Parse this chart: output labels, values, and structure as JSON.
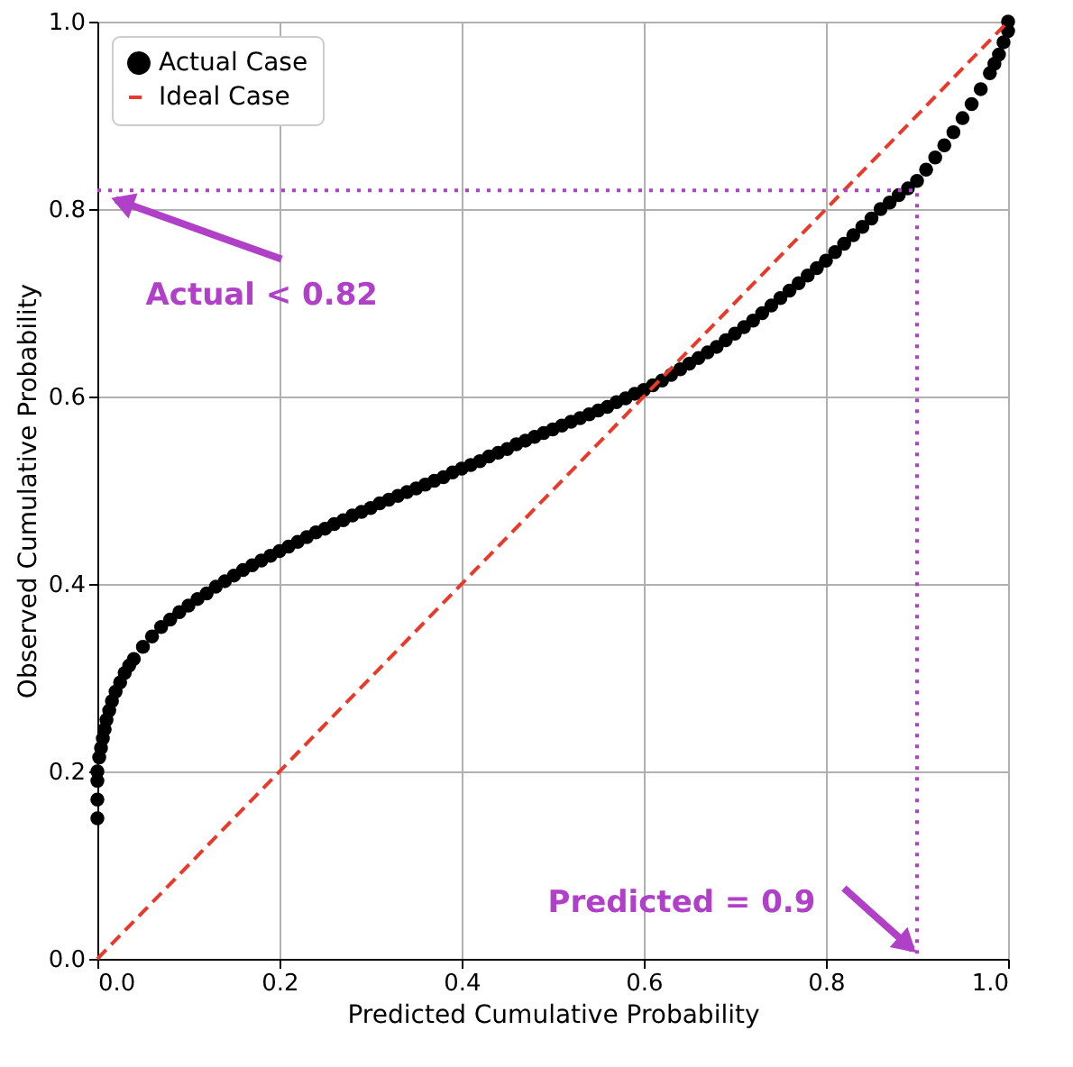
{
  "chart_data": {
    "type": "scatter",
    "xlabel": "Predicted Cumulative Probability",
    "ylabel": "Observed Cumulative Probability",
    "xlim": [
      0,
      1
    ],
    "ylim": [
      0,
      1
    ],
    "xticks": [
      {
        "value": 0,
        "label": "0.0"
      },
      {
        "value": 0.2,
        "label": "0.2"
      },
      {
        "value": 0.4,
        "label": "0.4"
      },
      {
        "value": 0.6,
        "label": "0.6"
      },
      {
        "value": 0.8,
        "label": "0.8"
      },
      {
        "value": 1,
        "label": "1.0"
      }
    ],
    "yticks": [
      {
        "value": 0,
        "label": "0.0"
      },
      {
        "value": 0.2,
        "label": "0.2"
      },
      {
        "value": 0.4,
        "label": "0.4"
      },
      {
        "value": 0.6,
        "label": "0.6"
      },
      {
        "value": 0.8,
        "label": "0.8"
      },
      {
        "value": 1,
        "label": "1.0"
      }
    ],
    "grid": true,
    "legend": "top left",
    "series": [
      {
        "name": "Actual Case",
        "marker": "circle",
        "color": "#000000",
        "x": [
          0,
          0,
          0,
          0,
          0.002,
          0.004,
          0.006,
          0.008,
          0.01,
          0.013,
          0.016,
          0.02,
          0.025,
          0.03,
          0.035,
          0.04,
          0.05,
          0.06,
          0.07,
          0.08,
          0.09,
          0.1,
          0.11,
          0.12,
          0.13,
          0.14,
          0.15,
          0.16,
          0.17,
          0.18,
          0.19,
          0.2,
          0.21,
          0.22,
          0.23,
          0.24,
          0.25,
          0.26,
          0.27,
          0.28,
          0.29,
          0.3,
          0.31,
          0.32,
          0.33,
          0.34,
          0.35,
          0.36,
          0.37,
          0.38,
          0.39,
          0.4,
          0.41,
          0.42,
          0.43,
          0.44,
          0.45,
          0.46,
          0.47,
          0.48,
          0.49,
          0.5,
          0.51,
          0.52,
          0.53,
          0.54,
          0.55,
          0.56,
          0.57,
          0.58,
          0.59,
          0.6,
          0.61,
          0.62,
          0.63,
          0.64,
          0.65,
          0.66,
          0.67,
          0.68,
          0.69,
          0.7,
          0.71,
          0.72,
          0.73,
          0.74,
          0.75,
          0.76,
          0.77,
          0.78,
          0.79,
          0.8,
          0.81,
          0.82,
          0.83,
          0.84,
          0.85,
          0.86,
          0.87,
          0.88,
          0.89,
          0.9,
          0.91,
          0.92,
          0.93,
          0.94,
          0.95,
          0.96,
          0.97,
          0.98,
          0.985,
          0.99,
          0.995,
          1,
          1
        ],
        "values": [
          0.15,
          0.17,
          0.19,
          0.2,
          0.215,
          0.225,
          0.235,
          0.245,
          0.255,
          0.265,
          0.275,
          0.285,
          0.295,
          0.305,
          0.313,
          0.32,
          0.333,
          0.344,
          0.354,
          0.362,
          0.37,
          0.377,
          0.384,
          0.39,
          0.397,
          0.403,
          0.409,
          0.415,
          0.42,
          0.425,
          0.43,
          0.435,
          0.44,
          0.445,
          0.45,
          0.455,
          0.459,
          0.464,
          0.468,
          0.473,
          0.477,
          0.481,
          0.486,
          0.49,
          0.494,
          0.498,
          0.502,
          0.506,
          0.51,
          0.514,
          0.519,
          0.523,
          0.527,
          0.531,
          0.536,
          0.54,
          0.544,
          0.549,
          0.553,
          0.557,
          0.561,
          0.565,
          0.569,
          0.573,
          0.577,
          0.581,
          0.585,
          0.589,
          0.594,
          0.598,
          0.603,
          0.607,
          0.612,
          0.617,
          0.623,
          0.629,
          0.635,
          0.641,
          0.647,
          0.653,
          0.66,
          0.667,
          0.674,
          0.681,
          0.689,
          0.697,
          0.705,
          0.713,
          0.721,
          0.729,
          0.737,
          0.745,
          0.754,
          0.763,
          0.772,
          0.781,
          0.79,
          0.8,
          0.807,
          0.815,
          0.822,
          0.83,
          0.842,
          0.855,
          0.868,
          0.882,
          0.897,
          0.912,
          0.928,
          0.945,
          0.955,
          0.965,
          0.978,
          0.99,
          1
        ]
      },
      {
        "name": "Ideal Case",
        "type": "line",
        "line_style": "dashed",
        "color": "#e8392a",
        "x": [
          0,
          1
        ],
        "values": [
          0,
          1
        ]
      },
      {
        "type": "line",
        "line_style": "dotted",
        "color": "#b040c8",
        "x": [
          0,
          0.9,
          0.9
        ],
        "values": [
          0.82,
          0.82,
          0
        ]
      }
    ],
    "annotations": [
      {
        "text": "Actual < 0.82",
        "x": 0.02,
        "y": 0.81
      },
      {
        "text": "Predicted = 0.9",
        "x": 0.895,
        "y": 0.01
      }
    ]
  }
}
